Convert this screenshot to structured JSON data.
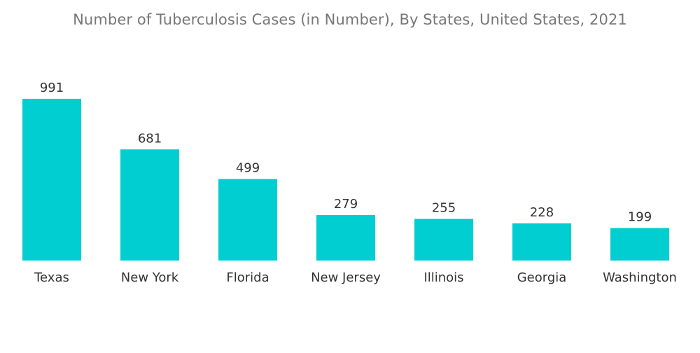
{
  "chart_data": {
    "type": "bar",
    "title": "Number of Tuberculosis Cases (in Number), By States, United States, 2021",
    "xlabel": "",
    "ylabel": "",
    "categories": [
      "Texas",
      "New York",
      "Florida",
      "New Jersey",
      "Illinois",
      "Georgia",
      "Washington"
    ],
    "values": [
      991,
      681,
      499,
      279,
      255,
      228,
      199
    ],
    "ylim": [
      0,
      991
    ],
    "grid": false,
    "legend": "none",
    "bar_color": "#00CED1",
    "data_labels": true
  }
}
